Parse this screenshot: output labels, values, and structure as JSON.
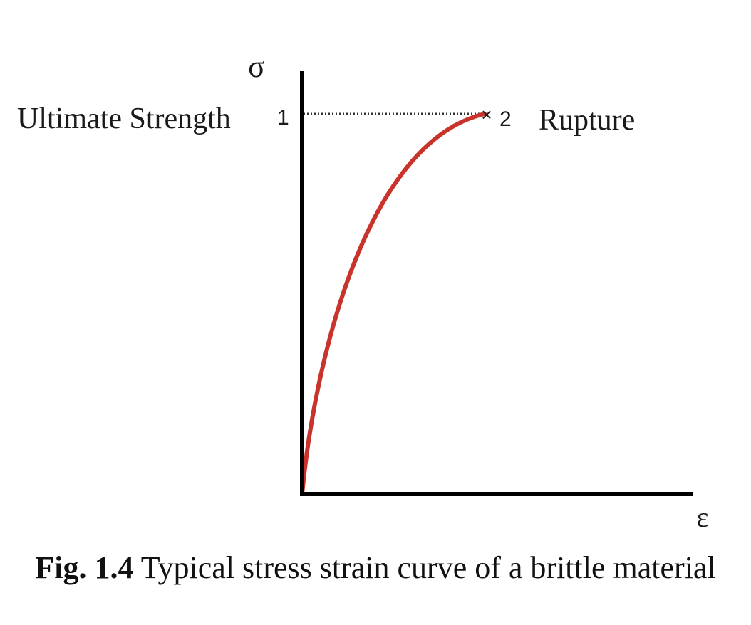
{
  "diagram": {
    "y_axis_symbol": "σ",
    "x_axis_symbol": "ε",
    "point_1": {
      "number": "1",
      "label": "Ultimate Strength"
    },
    "point_2": {
      "marker": "×",
      "number": "2",
      "label": "Rupture"
    },
    "curve_color": "#c8342c",
    "axis_color": "#000000"
  },
  "caption": {
    "number": "Fig. 1.4",
    "text": "Typical stress strain curve of a brittle material"
  }
}
